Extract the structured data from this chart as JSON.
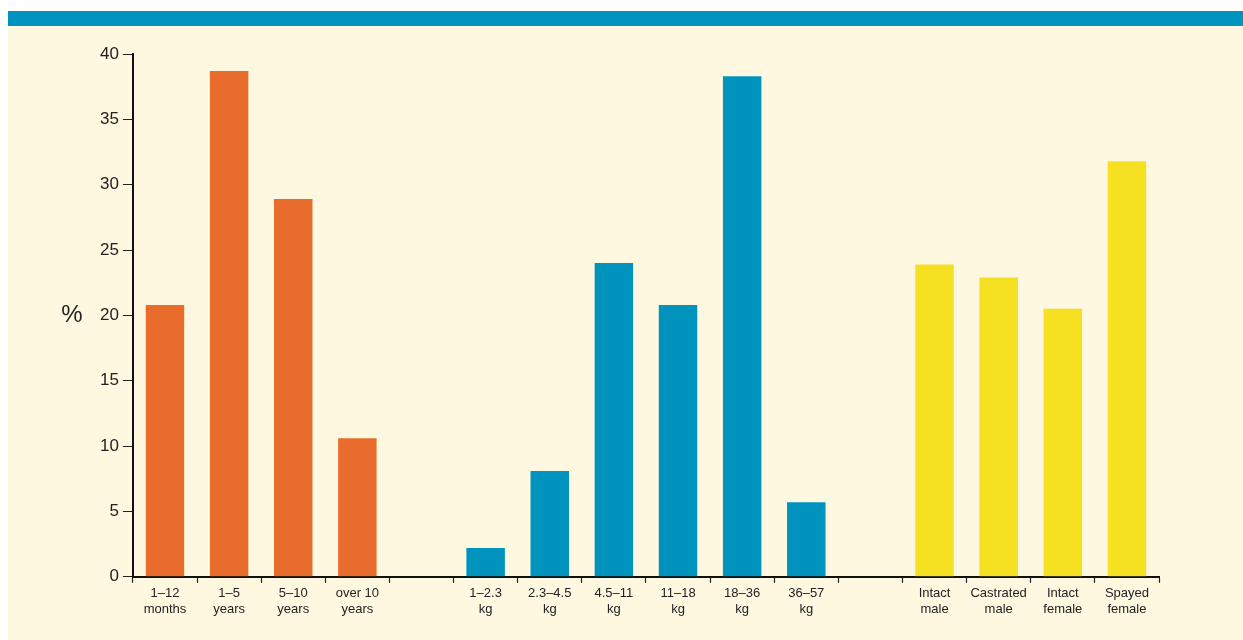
{
  "chart_data": {
    "type": "bar",
    "ylabel": "%",
    "categories": [
      "1–12 months",
      "1–5 years",
      "5–10 years",
      "over 10 years",
      null,
      "1–2.3 kg",
      "2.3–4.5 kg",
      "4.5–11 kg",
      "11–18 kg",
      "18–36 kg",
      "36–57 kg",
      null,
      "Intact male",
      "Castrated male",
      "Intact female",
      "Spayed female"
    ],
    "values": [
      20.8,
      38.7,
      28.9,
      10.6,
      null,
      2.2,
      8.1,
      24.0,
      20.8,
      38.3,
      5.7,
      null,
      23.9,
      22.9,
      20.5,
      31.8
    ],
    "colors": [
      "#e86c2c",
      "#e86c2c",
      "#e86c2c",
      "#e86c2c",
      "#e86c2c",
      "#0093bd",
      "#0093bd",
      "#0093bd",
      "#0093bd",
      "#0093bd",
      "#0093bd",
      "#0093bd",
      "#f6e022",
      "#f6e022",
      "#f6e022",
      "#f6e022"
    ],
    "ylim": [
      0,
      40
    ],
    "yticks": [
      0,
      5,
      10,
      15,
      20,
      25,
      30,
      35,
      40
    ],
    "grid": false,
    "legend": false
  }
}
